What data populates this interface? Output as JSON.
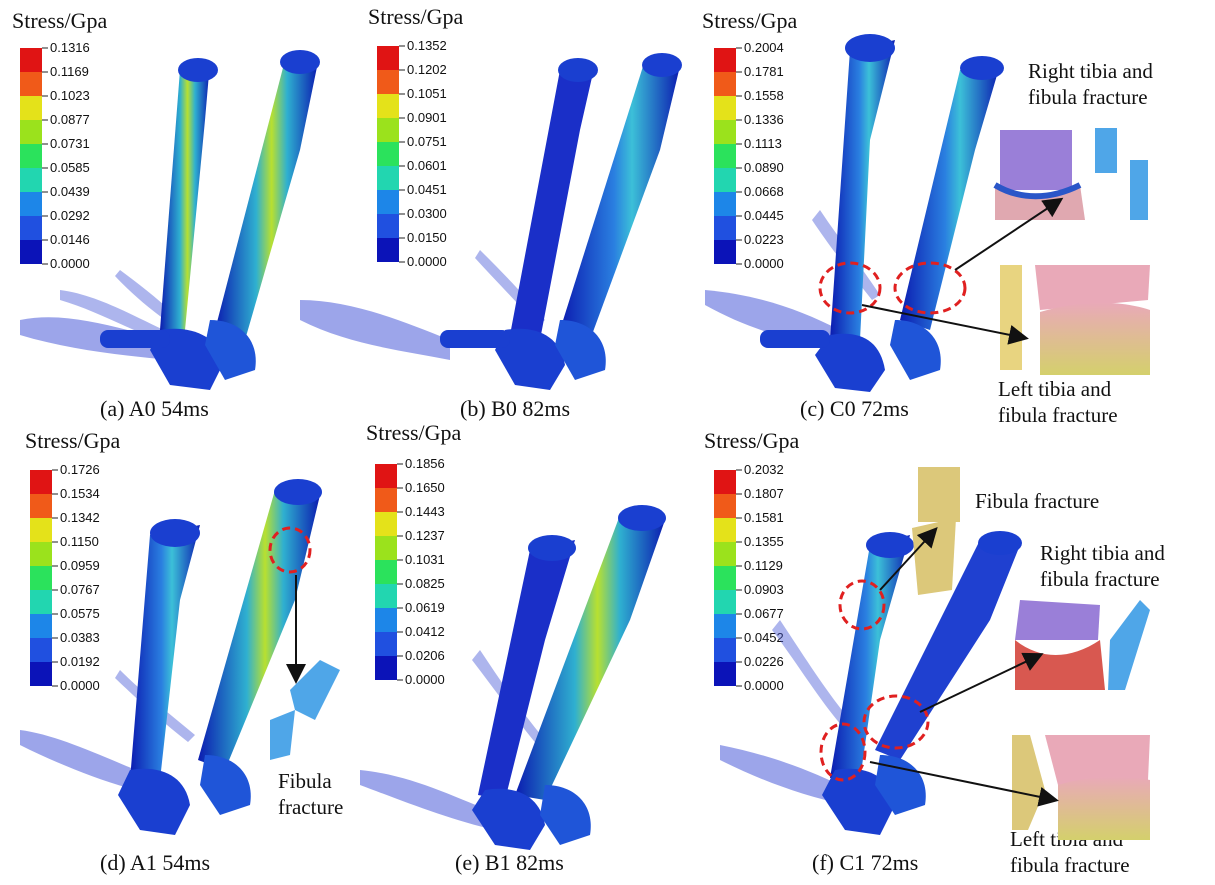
{
  "colors": {
    "scale": [
      "#0b13b8",
      "#2050e0",
      "#1d86e8",
      "#1db6d8",
      "#22d6b0",
      "#2be25c",
      "#9be21c",
      "#e4e21a",
      "#f7a51b",
      "#f05a19",
      "#e01414"
    ],
    "bone": "#1a3fd0",
    "bone_hi": "#39b8e0",
    "foot": "#4a5bd8",
    "fracture_circle": "#e02020",
    "arrow": "#111111"
  },
  "panels": [
    {
      "id": "a",
      "legend_title": "Stress/Gpa",
      "ticks": [
        "0.1316",
        "0.1169",
        "0.1023",
        "0.0877",
        "0.0731",
        "0.0585",
        "0.0439",
        "0.0292",
        "0.0146",
        "0.0000"
      ],
      "caption": "(a)  A0 54ms"
    },
    {
      "id": "b",
      "legend_title": "Stress/Gpa",
      "ticks": [
        "0.1352",
        "0.1202",
        "0.1051",
        "0.0901",
        "0.0751",
        "0.0601",
        "0.0451",
        "0.0300",
        "0.0150",
        "0.0000"
      ],
      "caption": "(b)  B0 82ms"
    },
    {
      "id": "c",
      "legend_title": "Stress/Gpa",
      "ticks": [
        "0.2004",
        "0.1781",
        "0.1558",
        "0.1336",
        "0.1113",
        "0.0890",
        "0.0668",
        "0.0445",
        "0.0223",
        "0.0000"
      ],
      "caption": "(c)  C0 72ms",
      "notes": [
        "Right tibia and\nfibula fracture",
        "Left tibia and\nfibula fracture"
      ]
    },
    {
      "id": "d",
      "legend_title": "Stress/Gpa",
      "ticks": [
        "0.1726",
        "0.1534",
        "0.1342",
        "0.1150",
        "0.0959",
        "0.0767",
        "0.0575",
        "0.0383",
        "0.0192",
        "0.0000"
      ],
      "caption": "(d)  A1 54ms",
      "notes": [
        "Fibula\nfracture"
      ]
    },
    {
      "id": "e",
      "legend_title": "Stress/Gpa",
      "ticks": [
        "0.1856",
        "0.1650",
        "0.1443",
        "0.1237",
        "0.1031",
        "0.0825",
        "0.0619",
        "0.0412",
        "0.0206",
        "0.0000"
      ],
      "caption": "(e)  B1 82ms"
    },
    {
      "id": "f",
      "legend_title": "Stress/Gpa",
      "ticks": [
        "0.2032",
        "0.1807",
        "0.1581",
        "0.1355",
        "0.1129",
        "0.0903",
        "0.0677",
        "0.0452",
        "0.0226",
        "0.0000"
      ],
      "caption": "(f)  C1 72ms",
      "notes": [
        "Fibula fracture",
        "Right tibia and\nfibula fracture",
        "Left tibia and\nfibula fracture"
      ]
    }
  ]
}
